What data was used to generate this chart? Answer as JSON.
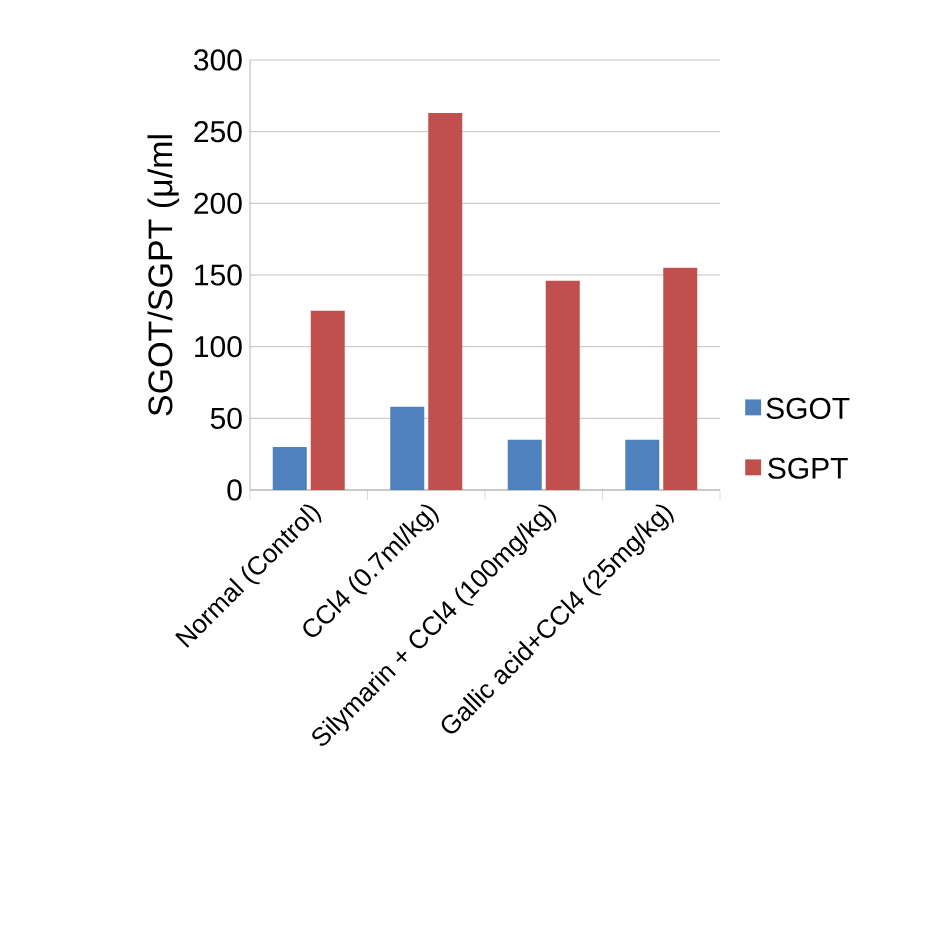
{
  "chart_data": {
    "type": "bar",
    "ylabel": "SGOT/SGPT (μ/ml",
    "categories": [
      "Normal (Control)",
      "CCl4 (0.7ml/kg)",
      "Silymarin + CCl4 (100mg/kg)",
      "Gallic acid+CCl4 (25mg/kg)"
    ],
    "series": [
      {
        "name": "SGOT",
        "color": "#4f81bd",
        "values": [
          30,
          58,
          35,
          35
        ]
      },
      {
        "name": "SGPT",
        "color": "#c0504d",
        "values": [
          125,
          263,
          146,
          155
        ]
      }
    ],
    "ylim": [
      0,
      300
    ],
    "yticks": [
      0,
      50,
      100,
      150,
      200,
      250,
      300
    ],
    "grid": "y",
    "legend": "right"
  }
}
